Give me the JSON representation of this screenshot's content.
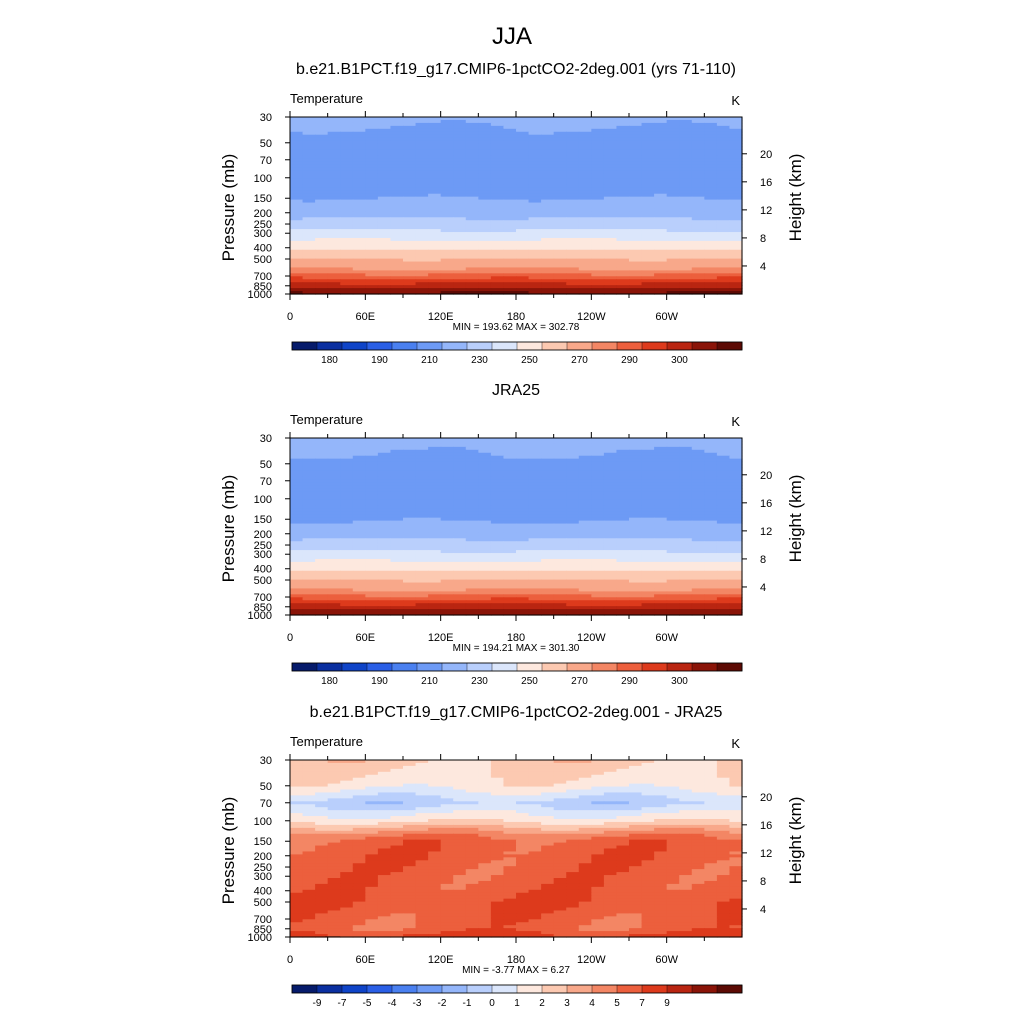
{
  "main_title": "JJA",
  "colors": {
    "palette": [
      "#061b6b",
      "#0a2fa0",
      "#0f44c8",
      "#2a5fe6",
      "#4a80f0",
      "#6d9af5",
      "#94b6fa",
      "#b9cffc",
      "#dbe6fb",
      "#fde8de",
      "#fcc9b1",
      "#f8a88a",
      "#f38664",
      "#ec5f3d",
      "#dd3a1c",
      "#b92511",
      "#8a1408",
      "#5c0a04"
    ],
    "topography": "#000000"
  },
  "chart_data": [
    {
      "type": "heatmap",
      "title": "b.e21.B1PCT.f19_g17.CMIP6-1pctCO2-2deg.001 (yrs 71-110)",
      "variable": "Temperature",
      "units": "K",
      "ylabel": "Pressure (mb)",
      "ylabel_right": "Height (km)",
      "x_ticks": [
        "0",
        "60E",
        "120E",
        "180",
        "120W",
        "60W"
      ],
      "x_range": [
        0,
        360
      ],
      "pressure_ticks": [
        "30",
        "50",
        "70",
        "100",
        "150",
        "200",
        "250",
        "300",
        "400",
        "500",
        "700",
        "850",
        "1000"
      ],
      "pressure_range": [
        30,
        1000
      ],
      "pressure_scale": "log",
      "height_ticks": [
        "4",
        "8",
        "12",
        "16",
        "20"
      ],
      "stats": "MIN = 193.62  MAX = 302.78",
      "min": 193.62,
      "max": 302.78,
      "contour_levels": [
        175,
        180,
        185,
        190,
        200,
        210,
        220,
        230,
        240,
        250,
        260,
        270,
        275,
        280,
        285,
        290,
        295,
        300,
        305
      ],
      "colorbar_labels": [
        "180",
        "190",
        "210",
        "230",
        "250",
        "270",
        "290",
        "300"
      ],
      "profile": [
        [
          30,
          212
        ],
        [
          50,
          207
        ],
        [
          70,
          203
        ],
        [
          100,
          202
        ],
        [
          150,
          210
        ],
        [
          200,
          216
        ],
        [
          250,
          225
        ],
        [
          300,
          233
        ],
        [
          400,
          248
        ],
        [
          500,
          260
        ],
        [
          700,
          277
        ],
        [
          850,
          288
        ],
        [
          1000,
          296
        ]
      ],
      "show_topography": true
    },
    {
      "type": "heatmap",
      "title": "JRA25",
      "variable": "Temperature",
      "units": "K",
      "ylabel": "Pressure (mb)",
      "ylabel_right": "Height (km)",
      "x_ticks": [
        "0",
        "60E",
        "120E",
        "180",
        "120W",
        "60W"
      ],
      "x_range": [
        0,
        360
      ],
      "pressure_ticks": [
        "30",
        "50",
        "70",
        "100",
        "150",
        "200",
        "250",
        "300",
        "400",
        "500",
        "700",
        "850",
        "1000"
      ],
      "pressure_range": [
        30,
        1000
      ],
      "pressure_scale": "log",
      "height_ticks": [
        "4",
        "8",
        "12",
        "16",
        "20"
      ],
      "stats": "MIN = 194.21  MAX = 301.30",
      "min": 194.21,
      "max": 301.3,
      "contour_levels": [
        175,
        180,
        185,
        190,
        200,
        210,
        220,
        230,
        240,
        250,
        260,
        270,
        275,
        280,
        285,
        290,
        295,
        300,
        305
      ],
      "colorbar_labels": [
        "180",
        "190",
        "210",
        "230",
        "250",
        "270",
        "290",
        "300"
      ],
      "profile": [
        [
          30,
          213
        ],
        [
          50,
          208
        ],
        [
          70,
          204
        ],
        [
          100,
          203
        ],
        [
          150,
          209
        ],
        [
          200,
          216
        ],
        [
          250,
          225
        ],
        [
          300,
          233
        ],
        [
          400,
          248
        ],
        [
          500,
          260
        ],
        [
          700,
          277
        ],
        [
          850,
          288
        ],
        [
          1000,
          295
        ]
      ],
      "show_topography": false
    },
    {
      "type": "heatmap",
      "title": "b.e21.B1PCT.f19_g17.CMIP6-1pctCO2-2deg.001 - JRA25",
      "variable": "Temperature",
      "units": "K",
      "ylabel": "Pressure (mb)",
      "ylabel_right": "Height (km)",
      "x_ticks": [
        "0",
        "60E",
        "120E",
        "180",
        "120W",
        "60W"
      ],
      "x_range": [
        0,
        360
      ],
      "pressure_ticks": [
        "30",
        "50",
        "70",
        "100",
        "150",
        "200",
        "250",
        "300",
        "400",
        "500",
        "700",
        "850",
        "1000"
      ],
      "pressure_range": [
        30,
        1000
      ],
      "pressure_scale": "log",
      "height_ticks": [
        "4",
        "8",
        "12",
        "16",
        "20"
      ],
      "stats": "MIN =  -3.77  MAX =   6.27",
      "min": -3.77,
      "max": 6.27,
      "contour_levels": [
        -11,
        -9,
        -8,
        -7,
        -6,
        -5,
        -4,
        -3,
        -2,
        -1,
        0,
        1,
        2,
        3,
        4,
        5,
        7,
        9,
        11
      ],
      "colorbar_labels": [
        "-9",
        "-7",
        "-5",
        "-4",
        "-3",
        "-2",
        "-1",
        "0",
        "1",
        "2",
        "3",
        "4",
        "5",
        "7",
        "9"
      ],
      "profile": [
        [
          30,
          -0.5
        ],
        [
          50,
          -1.5
        ],
        [
          70,
          -3.5
        ],
        [
          100,
          -1.2
        ],
        [
          130,
          1.5
        ],
        [
          150,
          2.5
        ],
        [
          200,
          2.6
        ],
        [
          300,
          2.5
        ],
        [
          400,
          2.6
        ],
        [
          500,
          2.8
        ],
        [
          700,
          2.5
        ],
        [
          850,
          2.4
        ],
        [
          1000,
          3.5
        ]
      ],
      "show_topography": true
    }
  ]
}
